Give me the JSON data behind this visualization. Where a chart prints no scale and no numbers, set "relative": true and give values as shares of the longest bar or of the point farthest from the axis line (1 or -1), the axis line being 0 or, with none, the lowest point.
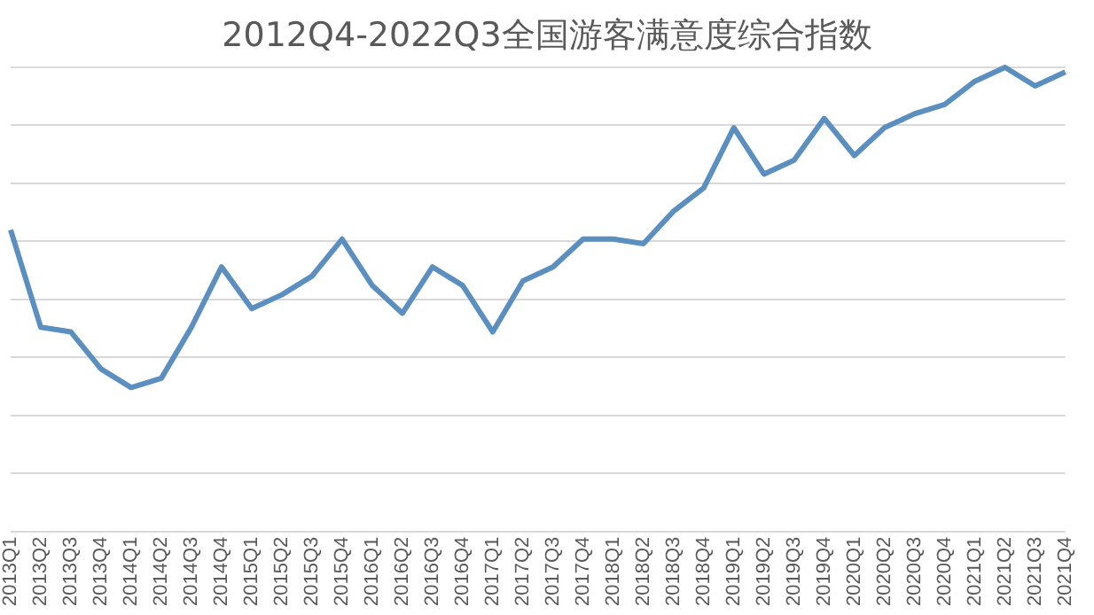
{
  "chart_data": {
    "type": "line",
    "title": "2012Q4-2022Q3全国游客满意度综合指数",
    "relative": true,
    "grid": "y",
    "legend": false,
    "marker": "none",
    "categories": [
      "2013Q1",
      "2013Q2",
      "2013Q3",
      "2013Q4",
      "2014Q1",
      "2014Q2",
      "2014Q3",
      "2014Q4",
      "2015Q1",
      "2015Q2",
      "2015Q3",
      "2015Q4",
      "2016Q1",
      "2016Q2",
      "2016Q3",
      "2016Q4",
      "2017Q1",
      "2017Q2",
      "2017Q3",
      "2017Q4",
      "2018Q1",
      "2018Q2",
      "2018Q3",
      "2018Q4",
      "2019Q1",
      "2019Q2",
      "2019Q3",
      "2019Q4",
      "2020Q1",
      "2020Q2",
      "2020Q3",
      "2020Q4",
      "2021Q1",
      "2021Q2",
      "2021Q3",
      "2021Q4"
    ],
    "series": [
      {
        "color": "#5b8fbf",
        "values": [
          0.65,
          0.44,
          0.43,
          0.35,
          0.31,
          0.33,
          0.44,
          0.57,
          0.48,
          0.51,
          0.55,
          0.63,
          0.53,
          0.47,
          0.57,
          0.53,
          0.43,
          0.54,
          0.57,
          0.63,
          0.63,
          0.62,
          0.69,
          0.74,
          0.87,
          0.77,
          0.8,
          0.89,
          0.81,
          0.87,
          0.9,
          0.92,
          0.97,
          1,
          0.96,
          0.99
        ]
      }
    ]
  }
}
